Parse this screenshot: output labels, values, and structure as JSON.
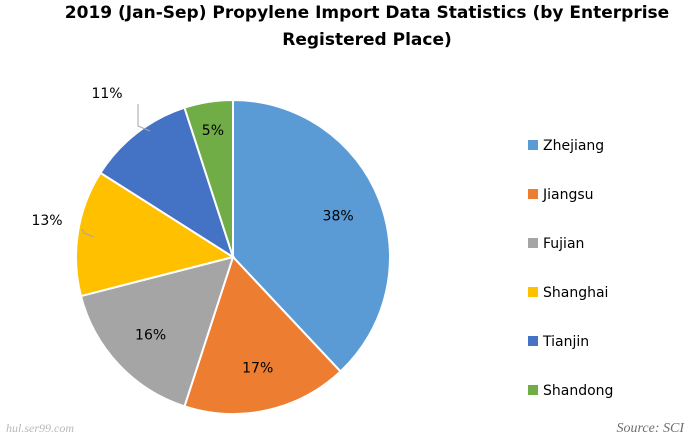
{
  "chart_data": {
    "type": "pie",
    "title": "2019 (Jan-Sep) Propylene Import Data Statistics (by Enterprise Registered Place)",
    "title_lines": [
      "2019 (Jan-Sep) Propylene Import Data Statistics (by Enterprise",
      "Registered Place)"
    ],
    "unit": "%",
    "slices": [
      {
        "label": "Zhejiang",
        "value": 38,
        "display": "38%",
        "color": "#5b9bd5"
      },
      {
        "label": "Jiangsu",
        "value": 17,
        "display": "17%",
        "color": "#ed7d31"
      },
      {
        "label": "Fujian",
        "value": 16,
        "display": "16%",
        "color": "#a5a5a5"
      },
      {
        "label": "Shanghai",
        "value": 13,
        "display": "13%",
        "color": "#ffc000"
      },
      {
        "label": "Tianjin",
        "value": 11,
        "display": "11%",
        "color": "#4472c4"
      },
      {
        "label": "Shandong",
        "value": 5,
        "display": "5%",
        "color": "#70ad47"
      }
    ],
    "start_angle": "12 o'clock",
    "direction": "clockwise",
    "legend_position": "right",
    "source": "Source: SCI",
    "watermark": "hul.ser99.com"
  }
}
